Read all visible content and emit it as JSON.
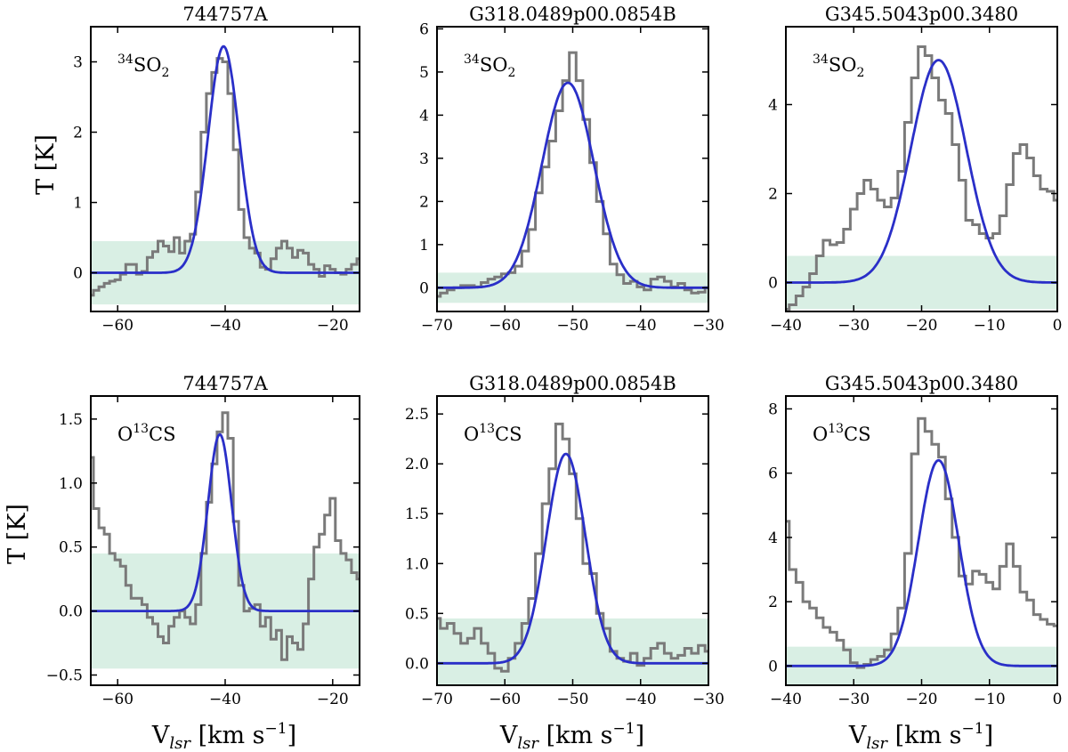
{
  "figure_labels": {
    "ylabel": "T [K]",
    "xlabel_main": "V",
    "xlabel_sub": "lsr",
    "xlabel_units": " [km s",
    "xlabel_exp": "−1",
    "xlabel_close": "]",
    "so2_sup": "34",
    "so2_main": "SO",
    "so2_sub": "2",
    "ocs_pre": "O",
    "ocs_sup": "13",
    "ocs_post": "CS"
  },
  "colors": {
    "observed": "#7a7a7a",
    "fit": "#2a2fc8",
    "noise_band": "#d9efe4",
    "axes": "#000000"
  },
  "chart_data": [
    {
      "type": "line",
      "title": "744757A",
      "molecule": "34SO2",
      "xlim": [
        -65,
        -15
      ],
      "ylim": [
        -0.55,
        3.5
      ],
      "xticks": [
        -60,
        -40,
        -20
      ],
      "yticks": [
        0,
        1,
        2,
        3
      ],
      "xtick_labels": [
        "−60",
        "−40",
        "−20"
      ],
      "ytick_labels": [
        "0",
        "1",
        "2",
        "3"
      ],
      "noise_band": [
        -0.45,
        0.45
      ],
      "fit": {
        "amplitude": 3.22,
        "center": -40.3,
        "fwhm": 6.8
      },
      "series": [
        {
          "name": "observed",
          "x": [
            -65,
            -64,
            -63,
            -62,
            -61,
            -60,
            -59,
            -58,
            -57,
            -56,
            -55,
            -54,
            -53,
            -52,
            -51,
            -50,
            -49,
            -48,
            -47,
            -46,
            -45,
            -44,
            -43,
            -42,
            -41,
            -40,
            -39,
            -38,
            -37,
            -36,
            -35,
            -34,
            -33,
            -32,
            -31,
            -30,
            -29,
            -28,
            -27,
            -26,
            -25,
            -24,
            -23,
            -22,
            -21,
            -20,
            -19,
            -18,
            -17,
            -16,
            -15
          ],
          "y": [
            -0.32,
            -0.25,
            -0.2,
            -0.15,
            -0.12,
            -0.1,
            -0.02,
            0.12,
            0.12,
            -0.02,
            0.02,
            0.22,
            0.3,
            0.45,
            0.38,
            0.3,
            0.5,
            0.28,
            0.45,
            0.55,
            1.15,
            2.0,
            2.55,
            2.85,
            3.05,
            3.0,
            2.55,
            1.75,
            0.9,
            0.5,
            0.35,
            0.28,
            0.08,
            0.05,
            0.2,
            0.35,
            0.45,
            0.35,
            0.22,
            0.32,
            0.28,
            0.12,
            0.05,
            -0.05,
            0.1,
            0.05,
            0.0,
            -0.02,
            0.05,
            0.12,
            0.2
          ]
        }
      ]
    },
    {
      "type": "line",
      "title": "G318.0489p00.0854B",
      "molecule": "34SO2",
      "xlim": [
        -70,
        -30
      ],
      "ylim": [
        -0.55,
        6.05
      ],
      "xticks": [
        -70,
        -60,
        -50,
        -40,
        -30
      ],
      "yticks": [
        0,
        1,
        2,
        3,
        4,
        5,
        6
      ],
      "xtick_labels": [
        "−70",
        "−60",
        "−50",
        "−40",
        "−30"
      ],
      "ytick_labels": [
        "0",
        "1",
        "2",
        "3",
        "4",
        "5",
        "6"
      ],
      "noise_band": [
        -0.35,
        0.35
      ],
      "fit": {
        "amplitude": 4.75,
        "center": -50.7,
        "fwhm": 9.0
      },
      "series": [
        {
          "name": "observed",
          "x": [
            -70,
            -69,
            -68,
            -67,
            -66,
            -65,
            -64,
            -63,
            -62,
            -61,
            -60,
            -59,
            -58,
            -57,
            -56,
            -55,
            -54,
            -53,
            -52,
            -51,
            -50,
            -49,
            -48,
            -47,
            -46,
            -45,
            -44,
            -43,
            -42,
            -41,
            -40,
            -39,
            -38,
            -37,
            -36,
            -35,
            -34,
            -33,
            -32,
            -31,
            -30
          ],
          "y": [
            -0.2,
            -0.12,
            -0.05,
            0.0,
            0.05,
            0.05,
            0.02,
            0.12,
            0.2,
            0.25,
            0.32,
            0.35,
            0.5,
            0.85,
            1.35,
            2.2,
            2.8,
            3.4,
            4.1,
            4.8,
            5.45,
            4.8,
            3.9,
            2.9,
            2.0,
            1.25,
            0.55,
            0.3,
            0.1,
            0.15,
            0.02,
            -0.05,
            0.2,
            0.25,
            0.15,
            0.02,
            0.1,
            -0.05,
            -0.12,
            -0.1,
            0.0
          ]
        }
      ]
    },
    {
      "type": "line",
      "title": "G345.5043p00.3480",
      "molecule": "34SO2",
      "xlim": [
        -40,
        0
      ],
      "ylim": [
        -0.65,
        5.75
      ],
      "xticks": [
        -40,
        -30,
        -20,
        -10,
        0
      ],
      "yticks": [
        0,
        2,
        4
      ],
      "xtick_labels": [
        "−40",
        "−30",
        "−20",
        "−10",
        "0"
      ],
      "ytick_labels": [
        "0",
        "2",
        "4"
      ],
      "noise_band": [
        -0.6,
        0.6
      ],
      "fit": {
        "amplitude": 5.0,
        "center": -17.5,
        "fwhm": 9.6
      },
      "series": [
        {
          "name": "observed",
          "x": [
            -40,
            -39,
            -38,
            -37,
            -36,
            -35,
            -34,
            -33,
            -32,
            -31,
            -30,
            -29,
            -28,
            -27,
            -26,
            -25,
            -24,
            -23,
            -22,
            -21,
            -20,
            -19,
            -18,
            -17,
            -16,
            -15,
            -14,
            -13,
            -12,
            -11,
            -10,
            -9,
            -8,
            -7,
            -6,
            -5,
            -4,
            -3,
            -2,
            -1,
            0
          ],
          "y": [
            -0.6,
            -0.5,
            -0.3,
            -0.1,
            0.2,
            0.6,
            0.95,
            0.85,
            0.9,
            1.2,
            1.65,
            2.0,
            2.3,
            2.1,
            1.85,
            1.7,
            1.9,
            2.5,
            3.6,
            4.6,
            5.3,
            5.1,
            4.6,
            4.1,
            3.8,
            3.1,
            2.3,
            1.4,
            1.3,
            1.1,
            1.0,
            1.1,
            1.5,
            2.2,
            2.9,
            3.1,
            2.8,
            2.4,
            2.1,
            2.05,
            1.85
          ]
        }
      ]
    },
    {
      "type": "line",
      "title": "744757A",
      "molecule": "O13CS",
      "xlim": [
        -65,
        -15
      ],
      "ylim": [
        -0.58,
        1.68
      ],
      "xticks": [
        -60,
        -40,
        -20
      ],
      "yticks": [
        -0.5,
        0.0,
        0.5,
        1.0,
        1.5
      ],
      "xtick_labels": [
        "−60",
        "−40",
        "−20"
      ],
      "ytick_labels": [
        "−0.5",
        "0.0",
        "0.5",
        "1.0",
        "1.5"
      ],
      "noise_band": [
        -0.45,
        0.45
      ],
      "fit": {
        "amplitude": 1.38,
        "center": -41.0,
        "fwhm": 5.2
      },
      "series": [
        {
          "name": "observed",
          "x": [
            -65,
            -64,
            -63,
            -62,
            -61,
            -60,
            -59,
            -58,
            -57,
            -56,
            -55,
            -54,
            -53,
            -52,
            -51,
            -50,
            -49,
            -48,
            -47,
            -46,
            -45,
            -44,
            -43,
            -42,
            -41,
            -40,
            -39,
            -38,
            -37,
            -36,
            -35,
            -34,
            -33,
            -32,
            -31,
            -30,
            -29,
            -28,
            -27,
            -26,
            -25,
            -24,
            -23,
            -22,
            -21,
            -20,
            -19,
            -18,
            -17,
            -16,
            -15
          ],
          "y": [
            1.2,
            0.8,
            0.65,
            0.6,
            0.45,
            0.4,
            0.35,
            0.2,
            0.1,
            0.1,
            0.05,
            -0.05,
            -0.1,
            -0.2,
            -0.25,
            -0.12,
            -0.05,
            0.0,
            -0.05,
            -0.1,
            0.05,
            0.45,
            0.85,
            1.15,
            1.4,
            1.55,
            1.35,
            0.7,
            0.2,
            0.0,
            0.02,
            0.05,
            -0.12,
            -0.05,
            -0.22,
            -0.15,
            -0.38,
            -0.2,
            -0.25,
            -0.3,
            -0.1,
            0.25,
            0.5,
            0.6,
            0.75,
            0.88,
            0.55,
            0.45,
            0.4,
            0.3,
            0.25
          ]
        }
      ]
    },
    {
      "type": "line",
      "title": "G318.0489p00.0854B",
      "molecule": "O13CS",
      "xlim": [
        -70,
        -30
      ],
      "ylim": [
        -0.22,
        2.68
      ],
      "xticks": [
        -70,
        -60,
        -50,
        -40,
        -30
      ],
      "yticks": [
        0.0,
        0.5,
        1.0,
        1.5,
        2.0,
        2.5
      ],
      "xtick_labels": [
        "−70",
        "−60",
        "−50",
        "−40",
        "−30"
      ],
      "ytick_labels": [
        "0.0",
        "0.5",
        "1.0",
        "1.5",
        "2.0",
        "2.5"
      ],
      "noise_band": [
        -0.45,
        0.45
      ],
      "fit": {
        "amplitude": 2.1,
        "center": -51.0,
        "fwhm": 6.8
      },
      "series": [
        {
          "name": "observed",
          "x": [
            -70,
            -69,
            -68,
            -67,
            -66,
            -65,
            -64,
            -63,
            -62,
            -61,
            -60,
            -59,
            -58,
            -57,
            -56,
            -55,
            -54,
            -53,
            -52,
            -51,
            -50,
            -49,
            -48,
            -47,
            -46,
            -45,
            -44,
            -43,
            -42,
            -41,
            -40,
            -39,
            -38,
            -37,
            -36,
            -35,
            -34,
            -33,
            -32,
            -31,
            -30
          ],
          "y": [
            0.45,
            0.35,
            0.4,
            0.3,
            0.2,
            0.25,
            0.35,
            0.2,
            0.1,
            -0.05,
            -0.08,
            0.05,
            0.2,
            0.4,
            0.65,
            1.1,
            1.6,
            1.95,
            2.4,
            2.25,
            1.9,
            1.45,
            1.0,
            0.9,
            0.5,
            0.35,
            0.12,
            0.05,
            0.02,
            0.1,
            -0.02,
            0.05,
            0.15,
            0.2,
            0.1,
            0.05,
            0.08,
            0.15,
            0.1,
            0.18,
            0.12
          ]
        }
      ]
    },
    {
      "type": "line",
      "title": "G345.5043p00.3480",
      "molecule": "O13CS",
      "xlim": [
        -40,
        0
      ],
      "ylim": [
        -0.6,
        8.4
      ],
      "xticks": [
        -40,
        -30,
        -20,
        -10,
        0
      ],
      "yticks": [
        0,
        2,
        4,
        6,
        8
      ],
      "xtick_labels": [
        "−40",
        "−30",
        "−20",
        "−10",
        "0"
      ],
      "ytick_labels": [
        "0",
        "2",
        "4",
        "6",
        "8"
      ],
      "noise_band": [
        -0.6,
        0.6
      ],
      "fit": {
        "amplitude": 6.4,
        "center": -17.5,
        "fwhm": 7.0
      },
      "series": [
        {
          "name": "observed",
          "x": [
            -40,
            -39,
            -38,
            -37,
            -36,
            -35,
            -34,
            -33,
            -32,
            -31,
            -30,
            -29,
            -28,
            -27,
            -26,
            -25,
            -24,
            -23,
            -22,
            -21,
            -20,
            -19,
            -18,
            -17,
            -16,
            -15,
            -14,
            -13,
            -12,
            -11,
            -10,
            -9,
            -8,
            -7,
            -6,
            -5,
            -4,
            -3,
            -2,
            -1,
            0
          ],
          "y": [
            4.5,
            3.0,
            2.6,
            2.0,
            1.8,
            1.5,
            1.2,
            1.05,
            0.8,
            0.5,
            0.1,
            -0.05,
            0.05,
            0.2,
            0.3,
            0.5,
            1.0,
            1.8,
            3.5,
            6.6,
            7.7,
            7.3,
            6.9,
            6.5,
            5.2,
            4.0,
            2.8,
            2.55,
            2.95,
            2.85,
            2.6,
            2.4,
            3.1,
            3.8,
            3.1,
            2.3,
            2.05,
            1.6,
            1.45,
            1.3,
            1.25
          ]
        }
      ]
    }
  ]
}
